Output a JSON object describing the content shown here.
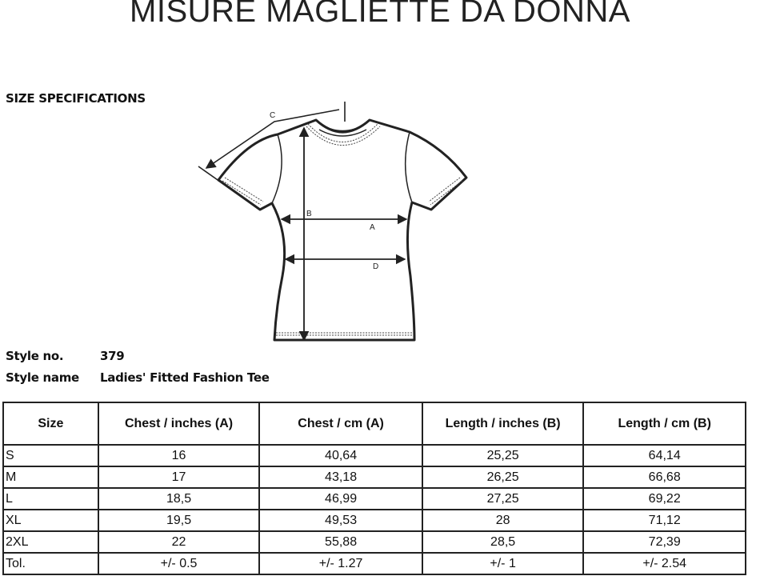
{
  "title": "MISURE MAGLIETTE DA DONNA",
  "section_heading": "SIZE SPECIFICATIONS",
  "diagram_labels": {
    "a": "A",
    "b": "B",
    "c": "C",
    "d": "D"
  },
  "style": {
    "number_label": "Style no.",
    "number_value": "379",
    "name_label": "Style name",
    "name_value": "Ladies' Fitted Fashion Tee"
  },
  "table": {
    "headers": [
      "Size",
      "Chest / inches (A)",
      "Chest / cm (A)",
      "Length / inches (B)",
      "Length / cm (B)"
    ],
    "rows": [
      [
        "S",
        "16",
        "40,64",
        "25,25",
        "64,14"
      ],
      [
        "M",
        "17",
        "43,18",
        "26,25",
        "66,68"
      ],
      [
        "L",
        "18,5",
        "46,99",
        "27,25",
        "69,22"
      ],
      [
        "XL",
        "19,5",
        "49,53",
        "28",
        "71,12"
      ],
      [
        "2XL",
        "22",
        "55,88",
        "28,5",
        "72,39"
      ],
      [
        "Tol.",
        "+/- 0.5",
        "+/- 1.27",
        "+/- 1",
        "+/- 2.54"
      ]
    ]
  }
}
